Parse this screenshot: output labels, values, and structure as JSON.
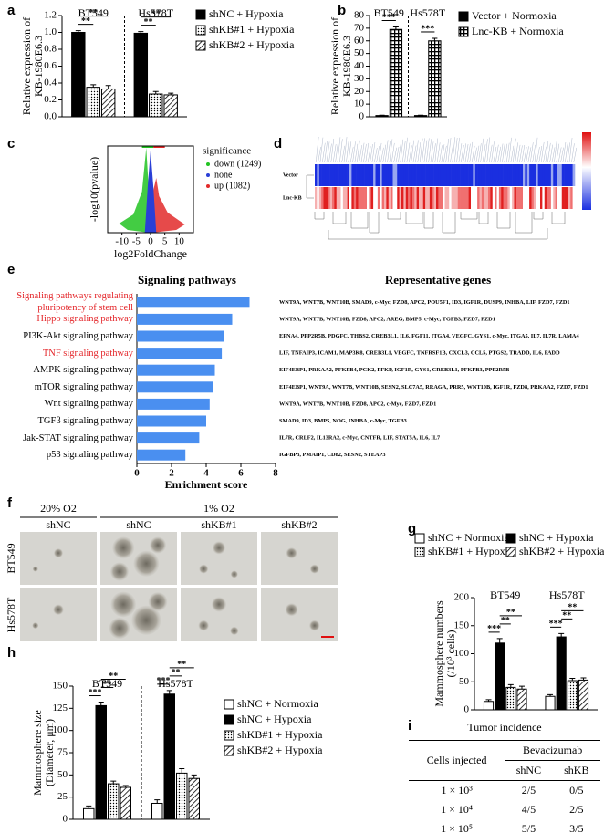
{
  "panel_labels": [
    "a",
    "b",
    "c",
    "d",
    "e",
    "f",
    "g",
    "h",
    "i"
  ],
  "chart_data": [
    {
      "type": "bar",
      "categories": [
        "BT549",
        "Hs578T"
      ],
      "ylabel": [
        "Relative expression of",
        "KB-1980E6.3"
      ],
      "ylim": [
        0,
        1.2
      ],
      "yticks": [
        {
          "value": 0,
          "label": "0.0"
        },
        {
          "value": 0.2,
          "label": "0.2"
        },
        {
          "value": 0.4,
          "label": "0.4"
        },
        {
          "value": 0.6,
          "label": "0.6"
        },
        {
          "value": 0.8,
          "label": "0.8"
        },
        {
          "value": 1,
          "label": "1.0"
        },
        {
          "value": 1.2,
          "label": "1.2"
        }
      ],
      "legend": "right",
      "series": [
        {
          "name": "shNC  + Hypoxia",
          "color": "#000000",
          "pattern": "solid",
          "values": [
            1.0,
            0.99
          ],
          "errors": [
            0.02,
            0.02
          ]
        },
        {
          "name": "shKB#1 + Hypoxia",
          "color": "#000000",
          "pattern": "dots",
          "values": [
            0.35,
            0.27
          ],
          "errors": [
            0.03,
            0.03
          ]
        },
        {
          "name": "shKB#2 + Hypoxia",
          "color": "#000000",
          "pattern": "hatch",
          "values": [
            0.33,
            0.26
          ],
          "errors": [
            0.04,
            0.02
          ]
        }
      ],
      "brackets": [
        [
          {
            "label": "**",
            "between": [
              0,
              1
            ]
          },
          {
            "label": "**",
            "between": [
              0,
              2
            ]
          }
        ],
        [
          {
            "label": "**",
            "between": [
              0,
              1
            ]
          },
          {
            "label": "**",
            "between": [
              0,
              2
            ]
          }
        ]
      ]
    },
    {
      "type": "bar",
      "categories": [
        "BT549",
        "Hs578T"
      ],
      "ylabel": [
        "Relative expression of",
        "KB-1980E6.3"
      ],
      "ylim": [
        0,
        80
      ],
      "yticks": [
        0,
        10,
        20,
        30,
        40,
        50,
        60,
        70,
        80
      ],
      "legend": "right",
      "series": [
        {
          "name": "Vector + Normoxia",
          "color": "#000000",
          "pattern": "solid",
          "values": [
            1,
            1
          ],
          "errors": [
            0.3,
            0.3
          ]
        },
        {
          "name": "Lnc-KB + Normoxia",
          "color": "#000000",
          "pattern": "checker",
          "values": [
            69,
            60
          ],
          "errors": [
            2,
            2
          ]
        }
      ],
      "brackets": [
        [
          {
            "label": "***",
            "between": [
              0,
              1
            ]
          }
        ],
        [
          {
            "label": "***",
            "between": [
              0,
              1
            ]
          }
        ]
      ]
    },
    {
      "type": "hbar",
      "title": "Signaling pathways",
      "genes_title": "Representative genes",
      "xlabel": "Enrichment score",
      "xlim": [
        0,
        8
      ],
      "xticks": [
        0,
        2,
        4,
        6,
        8
      ],
      "color": "#4a8ff0",
      "categories": [
        "Signaling pathways regulating pluripotency of stem cell",
        "Hippo signaling pathway",
        "PI3K-Akt signaling pathway",
        "TNF signaling pathway",
        "AMPK signaling pathway",
        "mTOR signaling pathway",
        "Wnt signaling pathway",
        "TGFβ signaling pathway",
        "Jak-STAT signaling pathway",
        "p53 signaling pathway"
      ],
      "label_colors": [
        "#e4262a",
        "#e4262a",
        "#000000",
        "#e4262a",
        "#000000",
        "#000000",
        "#000000",
        "#000000",
        "#000000",
        "#000000"
      ],
      "values": [
        6.5,
        5.5,
        5.0,
        4.9,
        4.5,
        4.4,
        4.2,
        4.0,
        3.6,
        2.8
      ],
      "genes": [
        "WNT9A, WNT7B, WNT10B, SMAD9, c-Myc, FZD8, APC2, POU5F1, ID3, IGF1R, DUSP9, INHBA, LIF, FZD7, FZD1",
        "WNT9A, WNT7B, WNT10B, FZD8, APC2, AREG, BMP5, c-Myc, TGFB3, FZD7, FZD1",
        "EFNA4, PPP2R5B, PDGFC, THBS2, CREB3L1, IL6, FGF11, ITGA4, VEGFC, GYS1, c-Myc, ITGA5, IL7, IL7R, LAMA4",
        "LIF, TNFAIP3, ICAM1, MAP3K8, CREB3L1, VEGFC, TNFRSF1B, CXCL3, CCL5, PTGS2, TRADD, IL6, FADD",
        "EIF4EBP1, PRKAA2, PFKFB4, PCK2, PFKP, IGF1R, GYS1, CREB3L1, PFKFB3, PPP2R5B",
        "EIF4EBP1, WNT9A, WNT7B, WNT10B, SESN2, SLC7A5, RRAGA, PRR5, WNT10B, IGF1R, FZD8, PRKAA2, FZD7, FZD1",
        "WNT9A, WNT7B, WNT10B, FZD8, APC2, c-Myc, FZD7, FZD1",
        "SMAD9, ID3, BMP5, NOG, INHBA, c-Myc, TGFB3",
        "IL7R, CRLF2, IL13RA2, c-Myc, CNTFR, LIF, STAT5A, IL6, IL7",
        "IGFBP3, PMAIP1, CD82, SESN2, STEAP3"
      ]
    },
    {
      "type": "bar",
      "categories": [
        "BT549",
        "Hs578T"
      ],
      "ylabel": [
        "Mammosphere numbers",
        "(/10³ cells)"
      ],
      "ylim": [
        0,
        200
      ],
      "yticks": [
        0,
        50,
        100,
        150,
        200
      ],
      "legend": "top",
      "series": [
        {
          "name": "shNC + Normoxia",
          "color": "#000000",
          "pattern": "none",
          "values": [
            15,
            24
          ],
          "errors": [
            3,
            3
          ]
        },
        {
          "name": "shNC + Hypoxia",
          "color": "#000000",
          "pattern": "solid",
          "values": [
            119,
            130
          ],
          "errors": [
            8,
            6
          ]
        },
        {
          "name": "shKB#1 + Hypoxia",
          "color": "#000000",
          "pattern": "dots",
          "values": [
            40,
            52
          ],
          "errors": [
            5,
            4
          ]
        },
        {
          "name": "shKB#2 + Hypoxia",
          "color": "#000000",
          "pattern": "hatch",
          "values": [
            37,
            53
          ],
          "errors": [
            5,
            4
          ]
        }
      ],
      "brackets": [
        [
          {
            "label": "***",
            "between": [
              0,
              1
            ]
          },
          {
            "label": "**",
            "between": [
              1,
              2
            ]
          },
          {
            "label": "**",
            "between": [
              1,
              3
            ]
          }
        ],
        [
          {
            "label": "***",
            "between": [
              0,
              1
            ]
          },
          {
            "label": "**",
            "between": [
              1,
              2
            ]
          },
          {
            "label": "**",
            "between": [
              1,
              3
            ]
          }
        ]
      ]
    },
    {
      "type": "bar",
      "categories": [
        "BT549",
        "Hs578T"
      ],
      "ylabel": [
        "Mammosphere size",
        "(Diameter, μm)"
      ],
      "ylim": [
        0,
        150
      ],
      "yticks": [
        0,
        25,
        50,
        75,
        100,
        125,
        150
      ],
      "legend": "right",
      "series": [
        {
          "name": "shNC  + Normoxia",
          "color": "#000000",
          "pattern": "none",
          "values": [
            12,
            18
          ],
          "errors": [
            3,
            4
          ]
        },
        {
          "name": "shNC  + Hypoxia",
          "color": "#000000",
          "pattern": "solid",
          "values": [
            128,
            141
          ],
          "errors": [
            4,
            4
          ]
        },
        {
          "name": "shKB#1 + Hypoxia",
          "color": "#000000",
          "pattern": "dots",
          "values": [
            40,
            52
          ],
          "errors": [
            3,
            5
          ]
        },
        {
          "name": "shKB#2 + Hypoxia",
          "color": "#000000",
          "pattern": "hatch",
          "values": [
            36,
            46
          ],
          "errors": [
            2,
            4
          ]
        }
      ],
      "brackets": [
        [
          {
            "label": "***",
            "between": [
              0,
              1
            ]
          },
          {
            "label": "**",
            "between": [
              1,
              2
            ]
          },
          {
            "label": "**",
            "between": [
              1,
              3
            ]
          }
        ],
        [
          {
            "label": "***",
            "between": [
              0,
              1
            ]
          },
          {
            "label": "**",
            "between": [
              1,
              2
            ]
          },
          {
            "label": "**",
            "between": [
              1,
              3
            ]
          }
        ]
      ]
    }
  ],
  "volcano": {
    "xlabel": "log2FoldChange",
    "ylabel": "-log10(pvalue)",
    "xlim": [
      -15,
      15
    ],
    "xticks": [
      -10,
      -5,
      0,
      5,
      10
    ],
    "legend_title": "significance",
    "legend": [
      {
        "name": "down (1249)",
        "color": "#22c322"
      },
      {
        "name": "none",
        "color": "#2a3fd6"
      },
      {
        "name": "up (1082)",
        "color": "#e22a2a"
      }
    ]
  },
  "heatmap": {
    "rows": [
      "Vector",
      "Lnc-KB"
    ]
  },
  "spheres": {
    "conditions": [
      "20% O2",
      "1% O2"
    ],
    "columns": [
      "shNC",
      "shNC",
      "shKB#1",
      "shKB#2"
    ],
    "rows": [
      "BT549",
      "Hs578T"
    ]
  },
  "table": {
    "title": "Tumor incidence",
    "corner": "Cells injected",
    "group": "Bevacizumab",
    "columns": [
      "shNC",
      "shKB"
    ],
    "rows": [
      [
        "1 × 10³",
        "2/5",
        "0/5"
      ],
      [
        "1 × 10⁴",
        "4/5",
        "2/5"
      ],
      [
        "1 × 10⁵",
        "5/5",
        "3/5"
      ]
    ]
  }
}
